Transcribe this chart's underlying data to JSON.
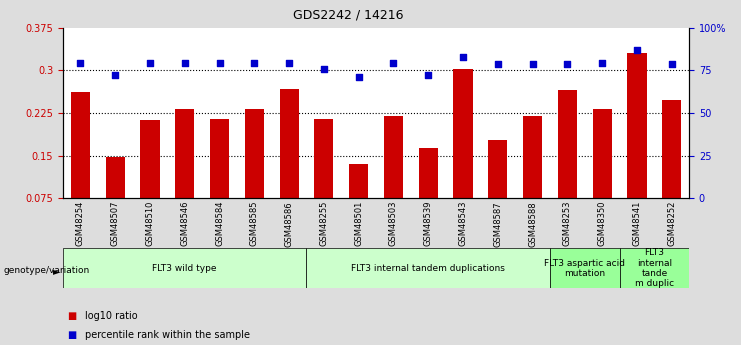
{
  "title": "GDS2242 / 14216",
  "samples": [
    "GSM48254",
    "GSM48507",
    "GSM48510",
    "GSM48546",
    "GSM48584",
    "GSM48585",
    "GSM48586",
    "GSM48255",
    "GSM48501",
    "GSM48503",
    "GSM48539",
    "GSM48543",
    "GSM48587",
    "GSM48588",
    "GSM48253",
    "GSM48350",
    "GSM48541",
    "GSM48252"
  ],
  "log10_ratio": [
    0.262,
    0.148,
    0.212,
    0.232,
    0.215,
    0.232,
    0.268,
    0.215,
    0.136,
    0.22,
    0.163,
    0.302,
    0.178,
    0.22,
    0.265,
    0.232,
    0.33,
    0.248
  ],
  "percentile_rank": [
    79.5,
    72.0,
    79.0,
    79.0,
    79.0,
    79.0,
    79.5,
    75.5,
    71.0,
    79.0,
    72.5,
    83.0,
    78.5,
    78.5,
    78.5,
    79.0,
    87.0,
    78.5
  ],
  "groups": [
    {
      "label": "FLT3 wild type",
      "start": 0,
      "end": 7,
      "color": "#ccffcc"
    },
    {
      "label": "FLT3 internal tandem duplications",
      "start": 7,
      "end": 14,
      "color": "#ccffcc"
    },
    {
      "label": "FLT3 aspartic acid\nmutation",
      "start": 14,
      "end": 16,
      "color": "#99ff99"
    },
    {
      "label": "FLT3\ninternal\ntande\nm duplic",
      "start": 16,
      "end": 18,
      "color": "#99ff99"
    }
  ],
  "ylim_left": [
    0.075,
    0.375
  ],
  "ylim_right": [
    0,
    100
  ],
  "yticks_left": [
    0.075,
    0.15,
    0.225,
    0.3,
    0.375
  ],
  "yticks_right": [
    0,
    25,
    50,
    75,
    100
  ],
  "ytick_labels_right": [
    "0",
    "25",
    "50",
    "75",
    "100%"
  ],
  "bar_color": "#cc0000",
  "dot_color": "#0000cc",
  "background_color": "#dddddd",
  "plot_bg": "#ffffff",
  "grid_lines": [
    0.15,
    0.225,
    0.3
  ],
  "legend_items": [
    {
      "color": "#cc0000",
      "label": "log10 ratio"
    },
    {
      "color": "#0000cc",
      "label": "percentile rank within the sample"
    }
  ]
}
